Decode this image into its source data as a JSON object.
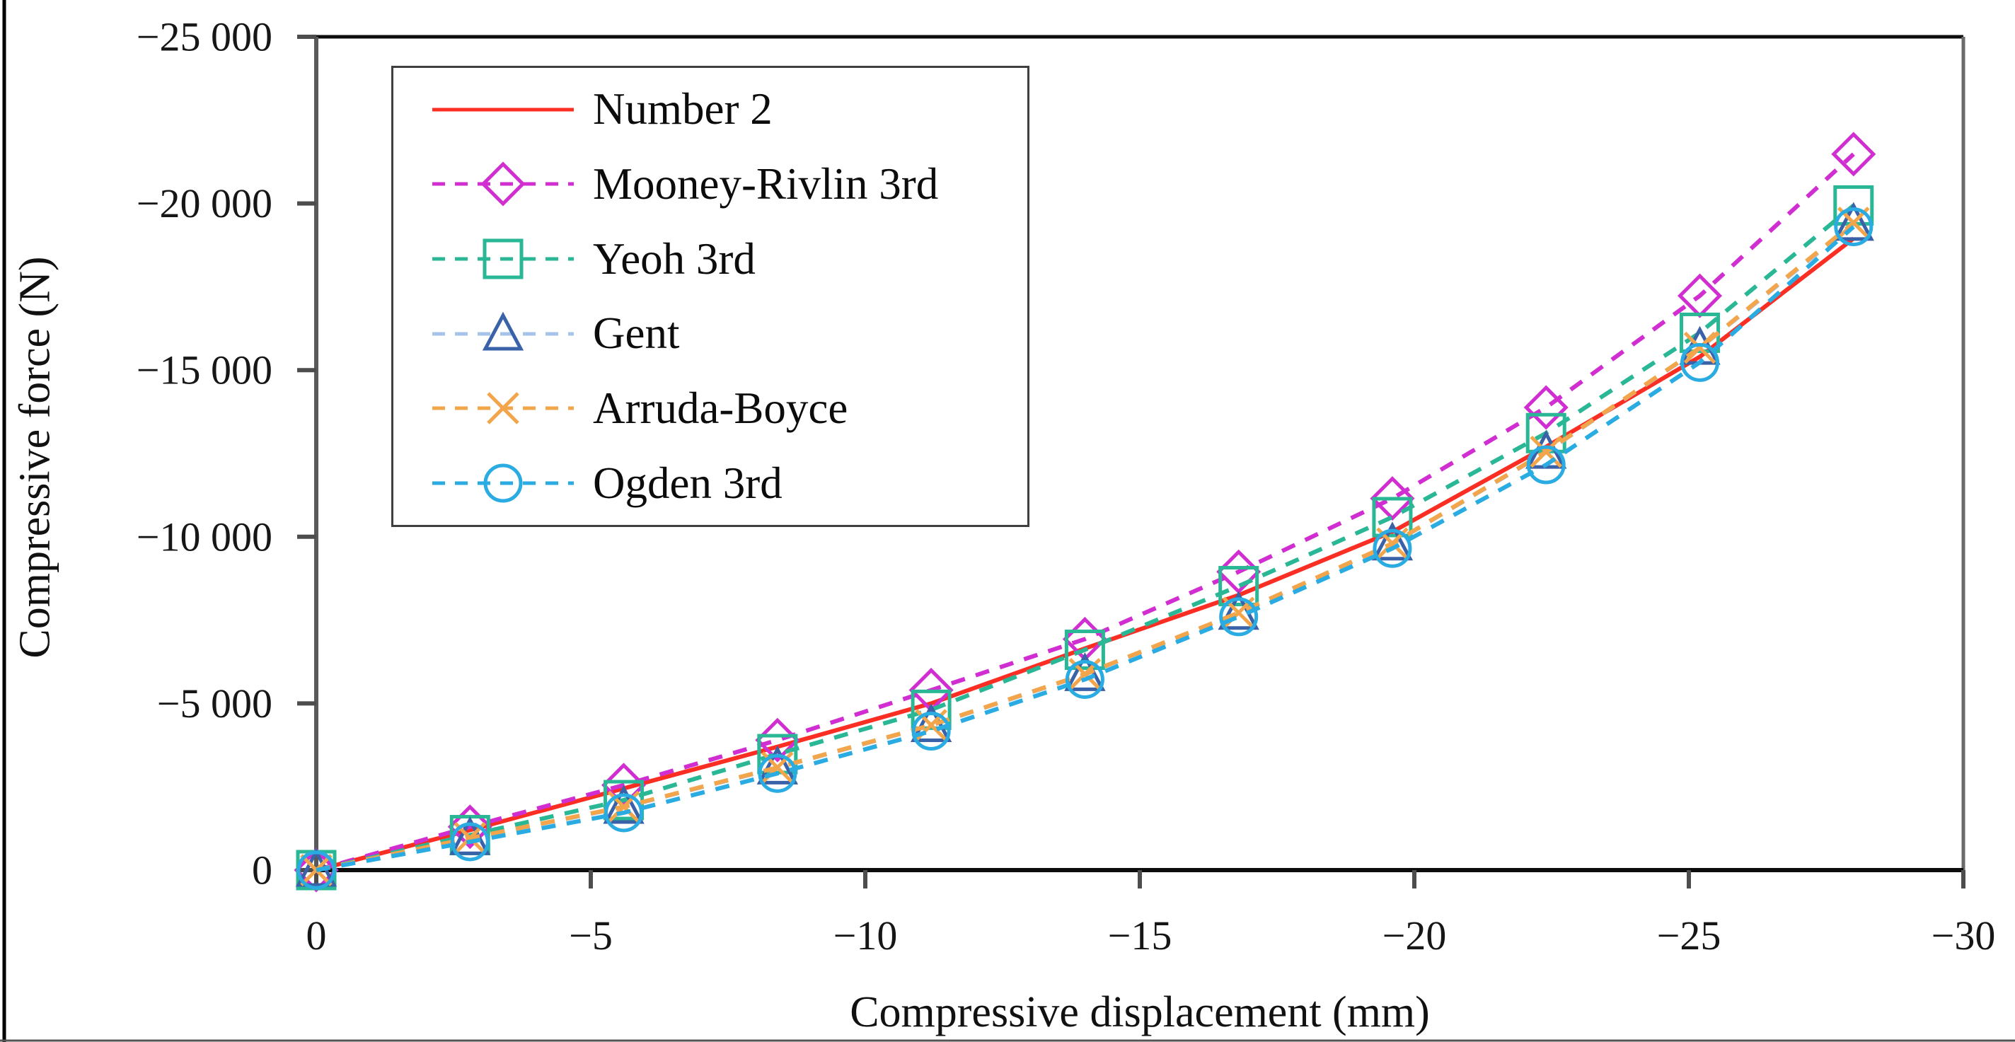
{
  "figure": {
    "left_border_color": "#000000",
    "bottom_border_color": "#555555",
    "background": "#ffffff"
  },
  "chart_data": {
    "type": "line",
    "title": "",
    "xlabel": "Compressive displacement (mm)",
    "ylabel": "Compressive force (N)",
    "xlim": [
      0,
      -30
    ],
    "ylim": [
      0,
      -25000
    ],
    "grid": false,
    "legend_position": "upper-left-inside",
    "axis_colors": {
      "top": "#0d0d0d",
      "bottom": "#0d0d0d",
      "left": "#595959",
      "right": "#6a6a6a",
      "tick": "#4d4d4d",
      "label": "#161616"
    },
    "x_ticks": {
      "values": [
        0,
        -5,
        -10,
        -15,
        -20,
        -25,
        -30
      ],
      "labels": [
        "0",
        "−5",
        "−10",
        "−15",
        "−20",
        "−25",
        "−30"
      ]
    },
    "y_ticks": {
      "values": [
        -25000,
        -20000,
        -15000,
        -10000,
        -5000,
        0
      ],
      "labels": [
        "−25 000",
        "−20 000",
        "−15 000",
        "−10 000",
        "−5 000",
        "0"
      ]
    },
    "x": [
      0,
      -2.8,
      -5.6,
      -8.4,
      -11.2,
      -14,
      -16.8,
      -19.6,
      -22.4,
      -25.2,
      -28
    ],
    "series": [
      {
        "name": "Number 2",
        "color": "#fb2e24",
        "line_style": "solid",
        "marker": "none",
        "marker_color": "#fb2e24",
        "values": [
          0,
          -1200,
          -2450,
          -3700,
          -5000,
          -6650,
          -8250,
          -10150,
          -12700,
          -15400,
          -18950
        ]
      },
      {
        "name": "Mooney-Rivlin 3rd",
        "color": "#d12ed1",
        "line_style": "dashed",
        "marker": "diamond",
        "marker_color": "#d12ed1",
        "values": [
          0,
          -1300,
          -2550,
          -3900,
          -5400,
          -6930,
          -8950,
          -11150,
          -13880,
          -17230,
          -21480
        ]
      },
      {
        "name": "Yeoh 3rd",
        "color": "#2ab795",
        "line_style": "dashed",
        "marker": "square",
        "marker_color": "#2ab795",
        "values": [
          0,
          -1050,
          -2100,
          -3480,
          -4810,
          -6610,
          -8520,
          -10590,
          -13110,
          -16120,
          -19940
        ]
      },
      {
        "name": "Gent",
        "color": "#a6c3e9",
        "line_style": "dashed",
        "marker": "triangle",
        "marker_color": "#3a62a8",
        "values": [
          0,
          -950,
          -1890,
          -3070,
          -4340,
          -5870,
          -7710,
          -9790,
          -12540,
          -15660,
          -19380
        ]
      },
      {
        "name": "Arruda-Boyce",
        "color": "#f2a54a",
        "line_style": "dashed",
        "marker": "x",
        "marker_color": "#f2a54a",
        "values": [
          0,
          -960,
          -1900,
          -3080,
          -4350,
          -5880,
          -7720,
          -9800,
          -12550,
          -15670,
          -19420
        ]
      },
      {
        "name": "Ogden 3rd",
        "color": "#2aace3",
        "line_style": "dashed",
        "marker": "circle",
        "marker_color": "#2aace3",
        "values": [
          0,
          -850,
          -1720,
          -2900,
          -4170,
          -5720,
          -7600,
          -9650,
          -12160,
          -15230,
          -19300
        ]
      }
    ]
  }
}
